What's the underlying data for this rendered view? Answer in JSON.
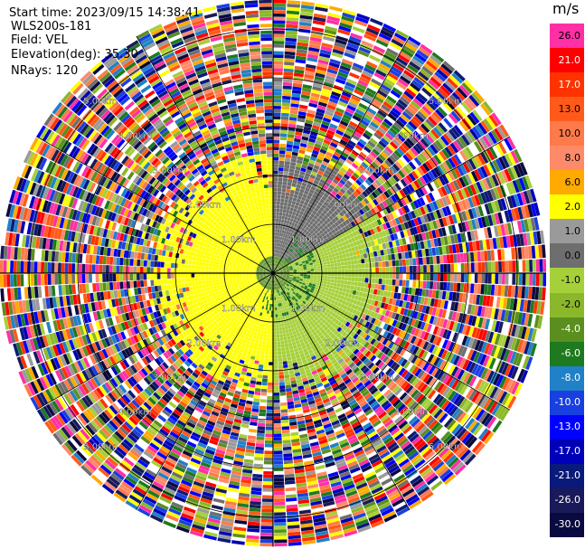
{
  "header": {
    "start_time": "Start time: 2023/09/15 14:38:41",
    "site": "WLS200s-181",
    "field": "Field: VEL",
    "elevation": "Elevation(deg): 35.30",
    "nrays": "NRays: 120"
  },
  "colorbar": {
    "unit": "m/s",
    "bands": [
      {
        "label": "26.0",
        "color": "#ff2fa6"
      },
      {
        "label": "21.0",
        "color": "#ff0000"
      },
      {
        "label": "17.0",
        "color": "#ff3300"
      },
      {
        "label": "13.0",
        "color": "#ff5a1a"
      },
      {
        "label": "10.0",
        "color": "#ff7a4a"
      },
      {
        "label": "8.0",
        "color": "#ff8a6a"
      },
      {
        "label": "6.0",
        "color": "#ffaa00"
      },
      {
        "label": "2.0",
        "color": "#ffff00"
      },
      {
        "label": "1.0",
        "color": "#9a9a9a"
      },
      {
        "label": "0.0",
        "color": "#6e6e6e"
      },
      {
        "label": "-1.0",
        "color": "#a6d03a"
      },
      {
        "label": "-2.0",
        "color": "#8bb82a"
      },
      {
        "label": "-4.0",
        "color": "#5a8f1f"
      },
      {
        "label": "-6.0",
        "color": "#1e7a1e"
      },
      {
        "label": "-8.0",
        "color": "#2080c8"
      },
      {
        "label": "-10.0",
        "color": "#1a3fe0"
      },
      {
        "label": "-13.0",
        "color": "#0000ff"
      },
      {
        "label": "-17.0",
        "color": "#0000b8"
      },
      {
        "label": "-21.0",
        "color": "#0a1a7a"
      },
      {
        "label": "-26.0",
        "color": "#1a1a5a"
      },
      {
        "label": "-30.0",
        "color": "#0a0a40"
      }
    ]
  },
  "chart_data": {
    "type": "heatmap",
    "projection": "polar PPI",
    "rays": 120,
    "range_ring_labels": [
      "1.00km",
      "2.00km",
      "3.00km",
      "4.00km",
      "5.00km"
    ],
    "max_range_km": 5.6,
    "field": "VEL",
    "units": "m/s",
    "data_regions": [
      {
        "range_km": [
          0,
          0.3
        ],
        "velocity_ms": -4.0
      },
      {
        "range_km": [
          0.3,
          2.4
        ],
        "sectors": [
          {
            "azimuth_deg": [
              180,
              360
            ],
            "velocity_ms": 2.0
          },
          {
            "azimuth_deg": [
              0,
              60
            ],
            "velocity_ms": 0.0
          },
          {
            "azimuth_deg": [
              60,
              180
            ],
            "velocity_ms": -1.0
          }
        ]
      },
      {
        "range_km": [
          2.4,
          5.6
        ],
        "velocity_ms": "noise (all colors)"
      }
    ]
  }
}
